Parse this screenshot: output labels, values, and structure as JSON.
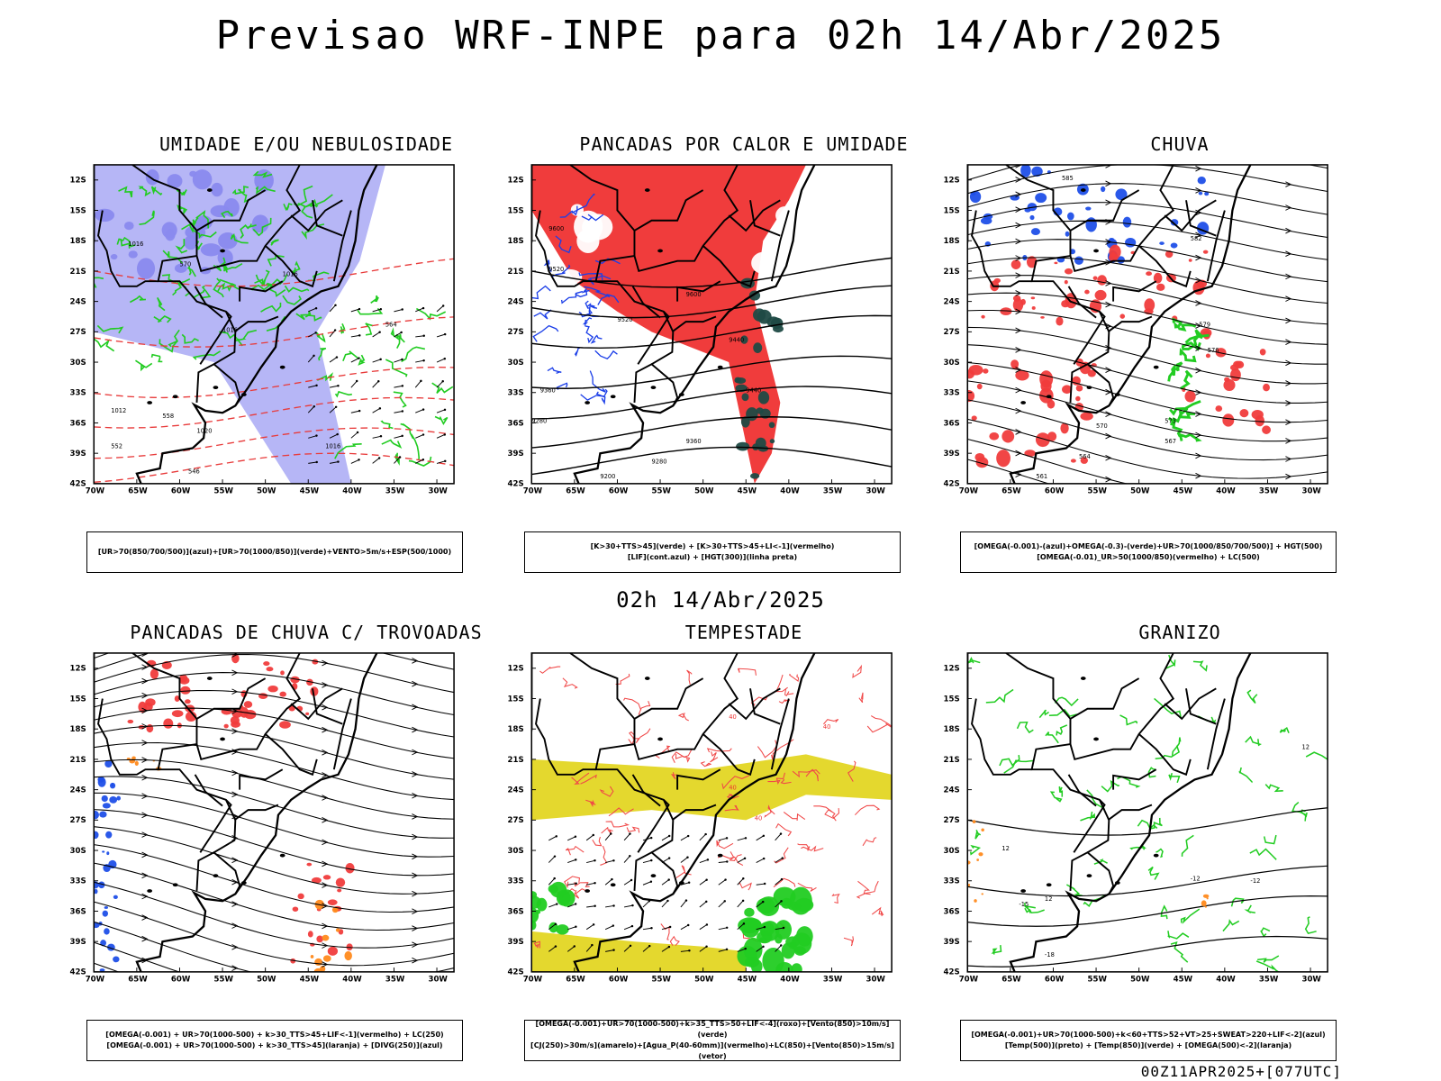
{
  "header": {
    "title": "Previsao WRF-INPE  para 02h 14/Abr/2025"
  },
  "middle": {
    "title": "02h 14/Abr/2025"
  },
  "footer": {
    "run_label": "00Z11APR2025+[077UTC]"
  },
  "axes": {
    "lat_ticks": [
      "12S",
      "15S",
      "18S",
      "21S",
      "24S",
      "27S",
      "30S",
      "33S",
      "36S",
      "39S",
      "42S"
    ],
    "lon_ticks": [
      "70W",
      "65W",
      "60W",
      "55W",
      "50W",
      "45W",
      "40W",
      "35W",
      "30W"
    ]
  },
  "panels": [
    {
      "title": "UMIDADE E/OU NEBULOSIDADE",
      "legend_lines": [
        "[UR>70(850/700/500)](azul)+[UR>70(1000/850)](verde)+VENTO>5m/s+ESP(500/1000)"
      ],
      "contour_labels": [
        "1016",
        "570",
        "1016",
        "1020",
        "1016",
        "1012",
        "558",
        "552",
        "546",
        "1016",
        "564"
      ]
    },
    {
      "title": "PANCADAS POR CALOR E UMIDADE",
      "legend_lines": [
        "[K>30+TTS>45](verde) + [K>30+TTS>45+LI<-1](vermelho)",
        "[LIF](cont.azul) + [HGT(300)](linha preta)"
      ],
      "contour_labels": [
        "9600",
        "9520",
        "9600",
        "9520",
        "9440",
        "9440",
        "9360",
        "9280",
        "9360",
        "9280",
        "9200"
      ]
    },
    {
      "title": "CHUVA",
      "legend_lines": [
        "[OMEGA(-0.001)-(azul)+OMEGA(-0.3)-(verde)+UR>70(1000/850/700/500)] + HGT(500)",
        "[OMEGA(-0.01)_UR>50(1000/850)(vermelho) + LC(500)"
      ],
      "contour_labels": [
        "585",
        "582",
        "579",
        "576",
        "573",
        "570",
        "567",
        "564",
        "561"
      ]
    },
    {
      "title": "PANCADAS DE CHUVA C/ TROVOADAS",
      "legend_lines": [
        "[OMEGA(-0.001) + UR>70(1000-500) + k>30_TTS>45+LIF<-1](vermelho) + LC(250)",
        "[OMEGA(-0.001) + UR>70(1000-500) + k>30_TTS>45](laranja) + [DIVG(250)](azul)"
      ],
      "contour_labels": []
    },
    {
      "title": "TEMPESTADE",
      "legend_lines": [
        "[OMEGA(-0.001)+UR>70(1000-500)+k>35_TTS>50+LIF<-4](roxo)+[Vento(850)>10m/s](verde)",
        "[CJ(250)>30m/s](amarelo)+[Agua_P(40-60mm)](vermelho)+LC(850)+[Vento(850)>15m/s](vetor)"
      ],
      "contour_labels": [
        "40",
        "40",
        "40",
        "40"
      ]
    },
    {
      "title": "GRANIZO",
      "legend_lines": [
        "[OMEGA(-0.001)+UR>70(1000-500)+k<60+TTS>52+VT>25+SWEAT>220+LIF<-2](azul)",
        "[Temp(500)](preto) + [Temp(850)](verde) + [OMEGA(500)<-2](laranja)"
      ],
      "contour_labels": [
        "-12",
        "-12",
        "-15",
        "-18",
        "12",
        "12",
        "12"
      ]
    }
  ]
}
